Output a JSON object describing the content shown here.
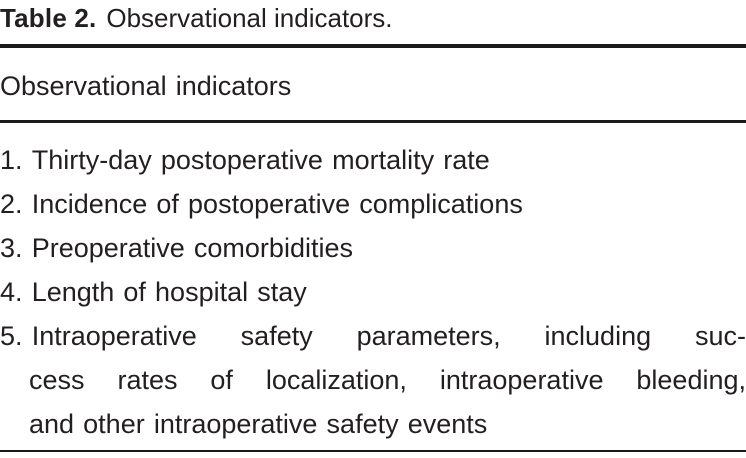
{
  "caption": {
    "label": "Table 2.",
    "text": "Observational indicators."
  },
  "column_header": "Observational indicators",
  "items": [
    {
      "number": "1.",
      "lines": [
        "Thirty-day postoperative mortality rate"
      ]
    },
    {
      "number": "2.",
      "lines": [
        "Incidence of postoperative complications"
      ]
    },
    {
      "number": "3.",
      "lines": [
        "Preoperative comorbidities"
      ]
    },
    {
      "number": "4.",
      "lines": [
        "Length of hospital stay"
      ]
    },
    {
      "number": "5.",
      "lines": [
        "Intraoperative safety parameters, including suc-",
        "cess rates of localization, intraoperative bleeding,",
        "and other intraoperative safety events"
      ]
    }
  ],
  "colors": {
    "background": "#ffffff",
    "text": "#231f20",
    "rule": "#1a1a1a"
  }
}
